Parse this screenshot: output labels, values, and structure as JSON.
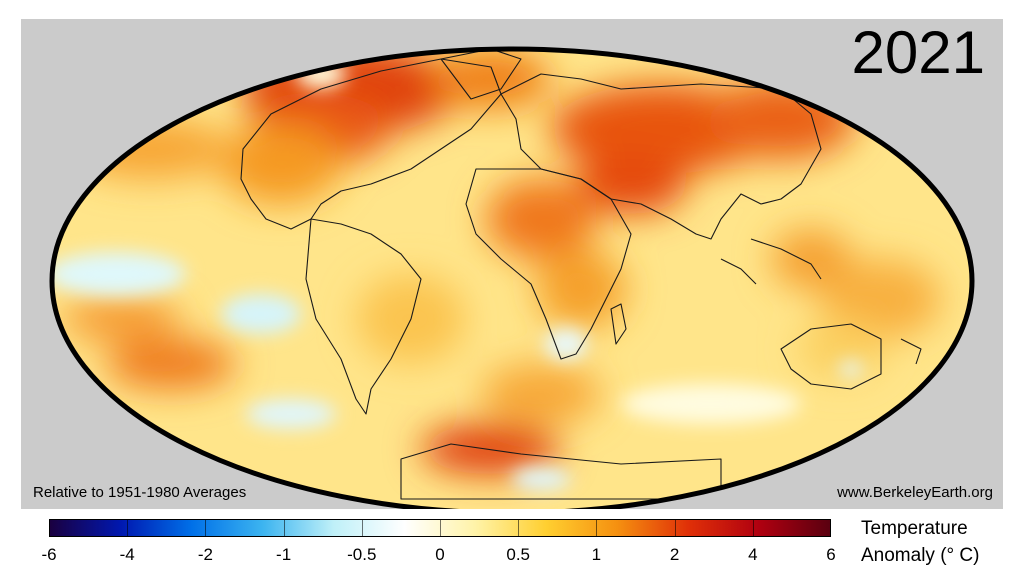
{
  "map": {
    "year": "2021",
    "baseline_note": "Relative to 1951-1980 Averages",
    "source": "www.BerkeleyEarth.org",
    "projection": "mollweide",
    "colors": {
      "background": "#cbcbcb",
      "ellipse_border": "#000000",
      "coast": "#1a1a1a"
    }
  },
  "colorbar": {
    "title_line1": "Temperature",
    "title_line2": "Anomaly (° C)",
    "ticks": [
      "-6",
      "-4",
      "-2",
      "-1",
      "-0.5",
      "0",
      "0.5",
      "1",
      "2",
      "4",
      "6"
    ],
    "gradient": [
      "#1a0040",
      "#0018b0",
      "#0070e8",
      "#3cb4f0",
      "#bff0f8",
      "#ffffff",
      "#fff3a8",
      "#ffcf30",
      "#f59010",
      "#e03008",
      "#b00010",
      "#5a0010"
    ]
  }
}
